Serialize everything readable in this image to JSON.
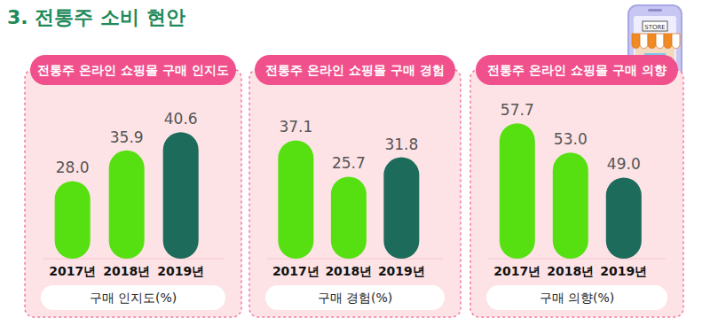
{
  "page_title": "3. 전통주 소비 현안",
  "icon_label": "STORE",
  "chart_data": [
    {
      "type": "bar",
      "title": "전통주 온라인 쇼핑몰 구매 인지도",
      "categories": [
        "2017년",
        "2018년",
        "2019년"
      ],
      "values": [
        28.0,
        35.9,
        40.6
      ],
      "value_labels": [
        "28.0",
        "35.9",
        "40.6"
      ],
      "x_label": "구매 인지도(%)",
      "colors": [
        "#56e012",
        "#56e012",
        "#1d6b5a"
      ],
      "ylim": [
        8,
        45
      ],
      "data_labels": true,
      "tick_labels": "x"
    },
    {
      "type": "bar",
      "title": "전통주 온라인 쇼핑몰 구매 경험",
      "categories": [
        "2017년",
        "2018년",
        "2019년"
      ],
      "values": [
        37.1,
        25.7,
        31.8
      ],
      "value_labels": [
        "37.1",
        "25.7",
        "31.8"
      ],
      "x_label": "구매 경험(%)",
      "colors": [
        "#56e012",
        "#56e012",
        "#1d6b5a"
      ],
      "ylim": [
        0,
        45
      ],
      "data_labels": true,
      "tick_labels": "x"
    },
    {
      "type": "bar",
      "title": "전통주 온라인 쇼핑몰 구매 의향",
      "categories": [
        "2017년",
        "2018년",
        "2019년"
      ],
      "values": [
        57.7,
        53.0,
        49.0
      ],
      "value_labels": [
        "57.7",
        "53.0",
        "49.0"
      ],
      "x_label": "구매 의향(%)",
      "colors": [
        "#56e012",
        "#56e012",
        "#1d6b5a"
      ],
      "ylim": [
        36,
        59
      ],
      "data_labels": true,
      "tick_labels": "x"
    }
  ]
}
